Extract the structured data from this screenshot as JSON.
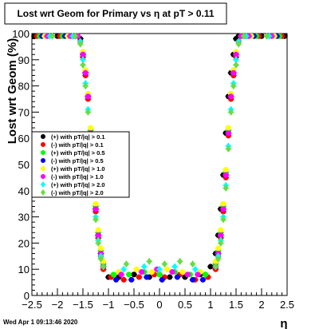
{
  "chart_data": {
    "type": "scatter",
    "title": "Lost wrt Geom for Primary vs   η at pT > 0.11",
    "xlabel": "η",
    "ylabel": "Lost wrt Geom (%)",
    "xlim": [
      -2.5,
      2.5
    ],
    "ylim": [
      0,
      100
    ],
    "x_ticks": [
      "−2.5",
      "−2",
      "−1.5",
      "−1",
      "−0.5",
      "0",
      "0.5",
      "1",
      "1.5",
      "2",
      "2.5"
    ],
    "x_tick_values": [
      -2.5,
      -2,
      -1.5,
      -1,
      -0.5,
      0,
      0.5,
      1,
      1.5,
      2,
      2.5
    ],
    "y_ticks": [
      "0",
      "10",
      "20",
      "30",
      "40",
      "50",
      "60",
      "70",
      "80",
      "90",
      "100"
    ],
    "y_tick_values": [
      0,
      10,
      20,
      30,
      40,
      50,
      60,
      70,
      80,
      90,
      100
    ],
    "grid": false,
    "legend_position": "middle-left",
    "footer": "Wed Apr  1 09:13:46 2020",
    "series": [
      {
        "name": "(+) with pT/|q| > 0.1",
        "color": "#000000",
        "marker": "circle",
        "x": [
          -2.45,
          -2.0,
          -1.7,
          -1.55,
          -1.5,
          -1.45,
          -1.4,
          -1.35,
          -1.3,
          -1.25,
          -1.2,
          -1.15,
          -1.1,
          -1.0,
          -0.8,
          -0.5,
          -0.2,
          0.0,
          0.2,
          0.5,
          0.8,
          1.0,
          1.1,
          1.15,
          1.2,
          1.25,
          1.3,
          1.35,
          1.4,
          1.45,
          1.5,
          1.55,
          1.7,
          2.0,
          2.45
        ],
        "y": [
          99,
          99,
          99,
          98,
          92,
          85,
          76,
          62,
          46,
          33,
          23,
          16,
          11,
          7,
          7,
          8,
          7,
          8,
          7,
          7,
          8,
          11,
          16,
          23,
          33,
          46,
          62,
          76,
          85,
          92,
          98,
          99,
          99,
          99,
          99
        ]
      },
      {
        "name": "(-) with pT/|q| > 0.1",
        "color": "#ff0000",
        "marker": "circle",
        "x": [
          -2.4,
          -1.95,
          -1.65,
          -1.55,
          -1.5,
          -1.45,
          -1.4,
          -1.35,
          -1.3,
          -1.25,
          -1.2,
          -1.15,
          -1.1,
          -0.95,
          -0.7,
          -0.4,
          -0.1,
          0.1,
          0.4,
          0.7,
          0.95,
          1.1,
          1.15,
          1.2,
          1.25,
          1.3,
          1.35,
          1.4,
          1.45,
          1.5,
          1.55,
          1.65,
          1.95,
          2.4
        ],
        "y": [
          99,
          99,
          99,
          97,
          91,
          84,
          75,
          61,
          45,
          32,
          22,
          15,
          10,
          7,
          6,
          7,
          8,
          7,
          8,
          6,
          7,
          10,
          15,
          22,
          32,
          45,
          61,
          75,
          84,
          91,
          97,
          99,
          99,
          99
        ]
      },
      {
        "name": "(+) with pT/|q| > 0.5",
        "color": "#00ff00",
        "marker": "circle",
        "x": [
          -2.35,
          -1.9,
          -1.6,
          -1.5,
          -1.45,
          -1.4,
          -1.35,
          -1.3,
          -1.25,
          -1.2,
          -1.15,
          -1.1,
          -0.9,
          -0.6,
          -0.3,
          0.0,
          0.3,
          0.6,
          0.9,
          1.1,
          1.15,
          1.2,
          1.25,
          1.3,
          1.35,
          1.4,
          1.45,
          1.5,
          1.6,
          1.9,
          2.35
        ],
        "y": [
          99,
          99,
          99,
          93,
          86,
          77,
          63,
          47,
          34,
          24,
          17,
          12,
          8,
          8,
          9,
          8,
          9,
          8,
          8,
          12,
          17,
          24,
          34,
          47,
          63,
          77,
          86,
          93,
          99,
          99,
          99
        ]
      },
      {
        "name": "(-) with pT/|q| > 0.5",
        "color": "#0000ff",
        "marker": "circle",
        "x": [
          -2.3,
          -1.85,
          -1.6,
          -1.5,
          -1.45,
          -1.4,
          -1.35,
          -1.3,
          -1.25,
          -1.2,
          -1.15,
          -1.1,
          -0.85,
          -0.55,
          -0.25,
          0.05,
          0.35,
          0.65,
          0.85,
          1.1,
          1.15,
          1.2,
          1.25,
          1.3,
          1.35,
          1.4,
          1.45,
          1.5,
          1.6,
          1.85,
          2.3
        ],
        "y": [
          99,
          99,
          99,
          92,
          85,
          76,
          62,
          46,
          33,
          23,
          16,
          11,
          6,
          6,
          7,
          6,
          7,
          6,
          6,
          11,
          16,
          23,
          33,
          46,
          62,
          76,
          85,
          92,
          99,
          99,
          99
        ]
      },
      {
        "name": "(+) with pT/|q| > 1.0",
        "color": "#ffff00",
        "marker": "circle",
        "x": [
          -2.25,
          -1.8,
          -1.6,
          -1.5,
          -1.45,
          -1.4,
          -1.35,
          -1.3,
          -1.25,
          -1.2,
          -1.15,
          -1.1,
          -0.8,
          -0.45,
          -0.15,
          0.15,
          0.45,
          0.8,
          1.1,
          1.15,
          1.2,
          1.25,
          1.3,
          1.35,
          1.4,
          1.45,
          1.5,
          1.6,
          1.8,
          2.25
        ],
        "y": [
          99,
          99,
          99,
          93,
          86,
          77,
          64,
          48,
          35,
          25,
          18,
          13,
          9,
          10,
          9,
          10,
          9,
          9,
          13,
          18,
          25,
          35,
          48,
          64,
          77,
          86,
          93,
          99,
          99,
          99
        ]
      },
      {
        "name": "(-) with pT/|q| > 1.0",
        "color": "#ff00ff",
        "marker": "circle",
        "x": [
          -2.2,
          -1.75,
          -1.6,
          -1.5,
          -1.45,
          -1.4,
          -1.35,
          -1.3,
          -1.25,
          -1.2,
          -1.15,
          -1.1,
          -0.75,
          -0.35,
          -0.05,
          0.25,
          0.55,
          0.75,
          1.1,
          1.15,
          1.2,
          1.25,
          1.3,
          1.35,
          1.4,
          1.45,
          1.5,
          1.6,
          1.75,
          2.2
        ],
        "y": [
          99,
          99,
          99,
          92,
          85,
          76,
          62,
          46,
          33,
          23,
          16,
          11,
          8,
          9,
          10,
          9,
          8,
          8,
          11,
          16,
          23,
          33,
          46,
          62,
          76,
          85,
          92,
          99,
          99,
          99
        ]
      },
      {
        "name": "(+) with pT/|q| > 2.0",
        "color": "#00ffff",
        "marker": "diamond",
        "x": [
          -2.15,
          -1.7,
          -1.55,
          -1.5,
          -1.45,
          -1.4,
          -1.35,
          -1.3,
          -1.25,
          -1.2,
          -1.15,
          -1.1,
          -0.7,
          -0.3,
          0.0,
          0.3,
          0.7,
          1.1,
          1.15,
          1.2,
          1.25,
          1.3,
          1.35,
          1.4,
          1.45,
          1.5,
          1.55,
          1.7,
          2.15
        ],
        "y": [
          99,
          99,
          97,
          90,
          81,
          71,
          57,
          42,
          30,
          21,
          15,
          11,
          10,
          11,
          10,
          11,
          10,
          11,
          15,
          21,
          30,
          42,
          57,
          71,
          81,
          90,
          97,
          99,
          99
        ]
      },
      {
        "name": "(-) with pT/|q| > 2.0",
        "color": "#66dd44",
        "marker": "diamond",
        "x": [
          -2.1,
          -1.65,
          -1.55,
          -1.5,
          -1.45,
          -1.4,
          -1.35,
          -1.3,
          -1.25,
          -1.2,
          -1.15,
          -1.1,
          -0.65,
          -0.2,
          0.1,
          0.4,
          0.65,
          1.1,
          1.15,
          1.2,
          1.25,
          1.3,
          1.35,
          1.4,
          1.45,
          1.5,
          1.55,
          1.65,
          2.1
        ],
        "y": [
          99,
          99,
          96,
          88,
          80,
          70,
          56,
          41,
          29,
          20,
          14,
          11,
          12,
          13,
          12,
          13,
          12,
          11,
          14,
          20,
          29,
          41,
          56,
          70,
          80,
          88,
          96,
          99,
          99
        ]
      }
    ]
  }
}
